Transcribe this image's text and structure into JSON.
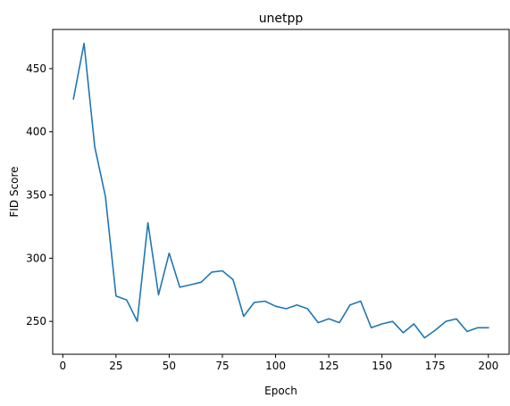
{
  "chart_data": {
    "type": "line",
    "title": "unetpp",
    "xlabel": "Epoch",
    "ylabel": "FID Score",
    "xlim": [
      -4.75,
      209.75
    ],
    "ylim": [
      224,
      481
    ],
    "xticks": [
      0,
      25,
      50,
      75,
      100,
      125,
      150,
      175,
      200
    ],
    "yticks": [
      250,
      300,
      350,
      400,
      450
    ],
    "grid": false,
    "line_color": "#1f77b4",
    "series": [
      {
        "x": [
          5,
          10,
          15,
          20,
          25,
          30,
          35,
          40,
          45,
          50,
          55,
          60,
          65,
          70,
          75,
          80,
          85,
          90,
          95,
          100,
          105,
          110,
          115,
          120,
          125,
          130,
          135,
          140,
          145,
          150,
          155,
          160,
          165,
          170,
          175,
          180,
          185,
          190,
          195,
          200
        ],
        "values": [
          426,
          470,
          388,
          349,
          270,
          267,
          250,
          328,
          271,
          304,
          277,
          279,
          281,
          289,
          290,
          283,
          254,
          265,
          266,
          262,
          260,
          263,
          260,
          249,
          252,
          249,
          263,
          266,
          245,
          248,
          250,
          241,
          248,
          237,
          243,
          250,
          252,
          242,
          245,
          245
        ]
      }
    ]
  }
}
